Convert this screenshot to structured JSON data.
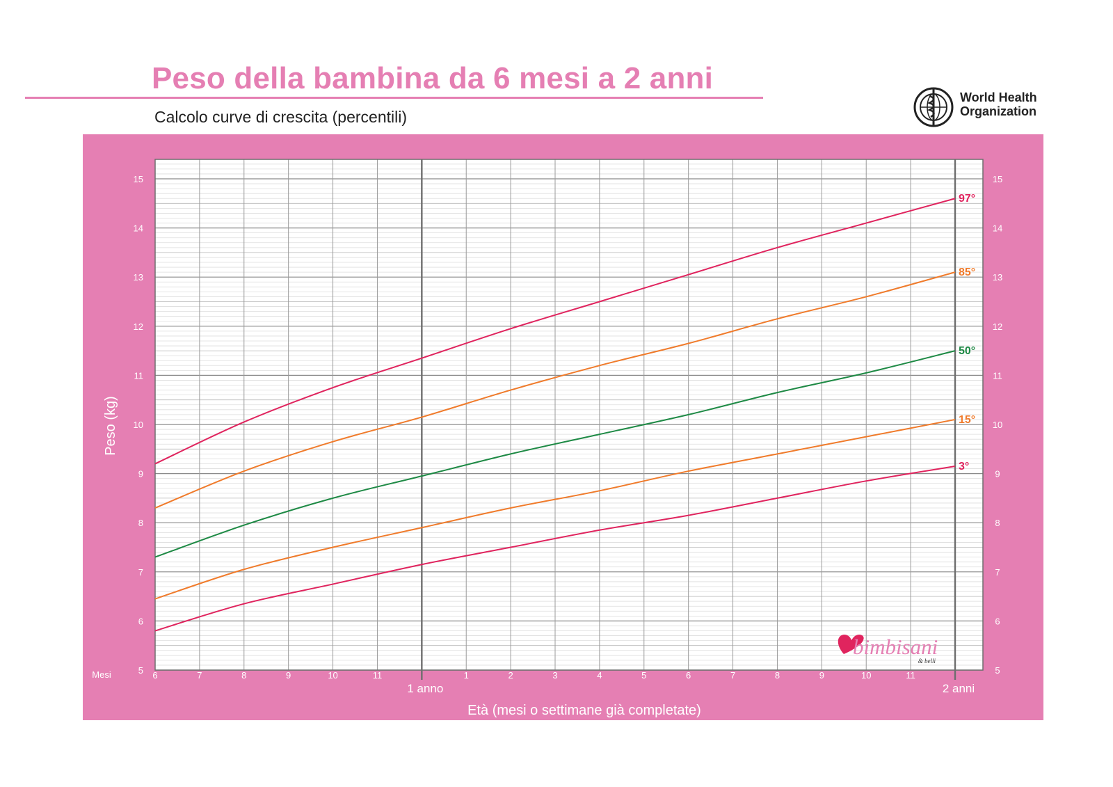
{
  "header": {
    "title": "Peso della bambina da 6 mesi a 2 anni",
    "subtitle": "Calcolo curve di crescita (percentili)"
  },
  "logo": {
    "who_line1": "World Health",
    "who_line2": "Organization",
    "brand": "bimbisani",
    "brand_tag": "& belli"
  },
  "colors": {
    "pink_frame": "#e57fb3",
    "p3_p97": "#e0245e",
    "p15_p85": "#f07b2b",
    "p50": "#1e8a45"
  },
  "chart_data": {
    "type": "line",
    "title": "Peso della bambina da 6 mesi a 2 anni",
    "subtitle": "Calcolo curve di crescita (percentili)",
    "xlabel": "Età (mesi o settimane già completate)",
    "ylabel": "Peso (kg)",
    "x_unit_label": "Mesi",
    "xlim": [
      6,
      24
    ],
    "ylim": [
      5,
      15.4
    ],
    "x_ticks": [
      {
        "x": 6,
        "label": "6"
      },
      {
        "x": 7,
        "label": "7"
      },
      {
        "x": 8,
        "label": "8"
      },
      {
        "x": 9,
        "label": "9"
      },
      {
        "x": 10,
        "label": "10"
      },
      {
        "x": 11,
        "label": "11"
      },
      {
        "x": 13,
        "label": "1"
      },
      {
        "x": 14,
        "label": "2"
      },
      {
        "x": 15,
        "label": "3"
      },
      {
        "x": 16,
        "label": "4"
      },
      {
        "x": 17,
        "label": "5"
      },
      {
        "x": 18,
        "label": "6"
      },
      {
        "x": 19,
        "label": "7"
      },
      {
        "x": 20,
        "label": "8"
      },
      {
        "x": 21,
        "label": "9"
      },
      {
        "x": 22,
        "label": "10"
      },
      {
        "x": 23,
        "label": "11"
      }
    ],
    "year_markers": [
      {
        "x": 12,
        "label": "1 anno"
      },
      {
        "x": 24,
        "label": "2 anni"
      }
    ],
    "y_ticks": [
      5,
      6,
      7,
      8,
      9,
      10,
      11,
      12,
      13,
      14,
      15
    ],
    "grid": true,
    "x": [
      6,
      8,
      10,
      12,
      14,
      16,
      18,
      20,
      22,
      24
    ],
    "series": [
      {
        "name": "3°",
        "values": [
          5.8,
          6.35,
          6.75,
          7.15,
          7.5,
          7.85,
          8.15,
          8.5,
          8.85,
          9.15
        ]
      },
      {
        "name": "15°",
        "values": [
          6.45,
          7.05,
          7.5,
          7.9,
          8.3,
          8.65,
          9.05,
          9.4,
          9.75,
          10.1
        ]
      },
      {
        "name": "50°",
        "values": [
          7.3,
          7.95,
          8.5,
          8.95,
          9.4,
          9.8,
          10.2,
          10.65,
          11.05,
          11.5
        ]
      },
      {
        "name": "85°",
        "values": [
          8.3,
          9.05,
          9.65,
          10.15,
          10.7,
          11.2,
          11.65,
          12.15,
          12.6,
          13.1
        ]
      },
      {
        "name": "97°",
        "values": [
          9.2,
          10.05,
          10.75,
          11.35,
          11.95,
          12.5,
          13.05,
          13.6,
          14.1,
          14.6
        ]
      }
    ]
  }
}
